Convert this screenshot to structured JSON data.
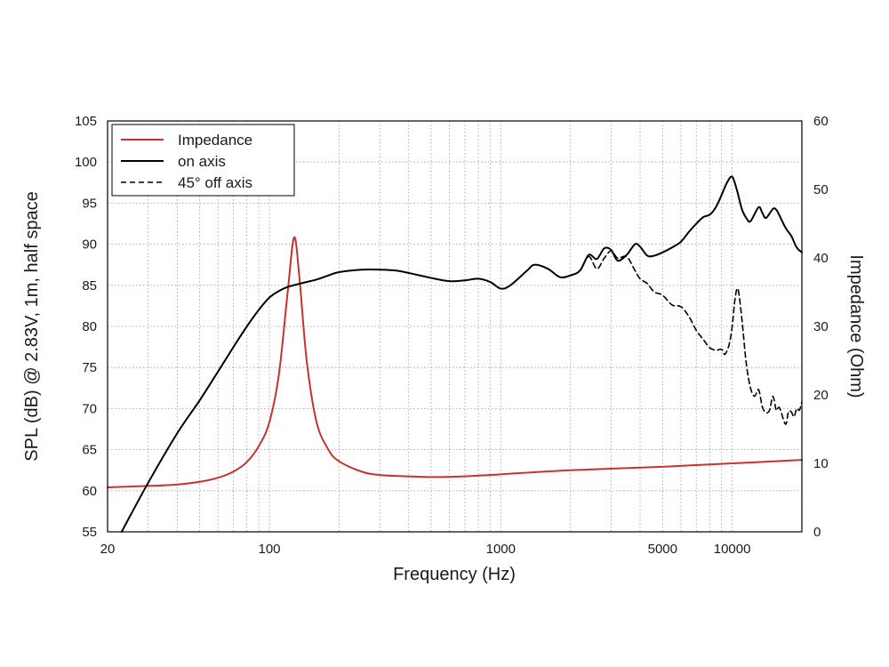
{
  "chart_data": {
    "type": "line",
    "xlabel": "Frequency (Hz)",
    "ylabel_left": "SPL (dB) @ 2.83V, 1m, half space",
    "ylabel_right": "Impedance (Ohm)",
    "x_scale": "log",
    "xlim": [
      20,
      20000
    ],
    "ylim_left": [
      55,
      105
    ],
    "ylim_right": [
      0,
      60
    ],
    "x_ticks": [
      20,
      100,
      1000,
      5000,
      10000
    ],
    "x_tick_labels": [
      "20",
      "100",
      "1000",
      "5000",
      "10000"
    ],
    "y_left_ticks": [
      55,
      60,
      65,
      70,
      75,
      80,
      85,
      90,
      95,
      100,
      105
    ],
    "y_right_ticks": [
      0,
      10,
      20,
      30,
      40,
      50,
      60
    ],
    "grid": true,
    "legend_position": "top-left",
    "colors": {
      "impedance": "#c8322c",
      "spl": "#000000"
    },
    "series": [
      {
        "name": "Impedance",
        "axis": "right",
        "style": "solid",
        "color": "#c8322c",
        "points": [
          [
            20,
            6.5
          ],
          [
            30,
            6.7
          ],
          [
            40,
            6.9
          ],
          [
            50,
            7.3
          ],
          [
            60,
            7.9
          ],
          [
            70,
            8.8
          ],
          [
            80,
            10.2
          ],
          [
            90,
            12.5
          ],
          [
            100,
            16
          ],
          [
            110,
            23
          ],
          [
            120,
            35
          ],
          [
            128,
            43
          ],
          [
            135,
            37
          ],
          [
            145,
            25
          ],
          [
            160,
            16
          ],
          [
            180,
            12
          ],
          [
            200,
            10.3
          ],
          [
            250,
            8.8
          ],
          [
            300,
            8.3
          ],
          [
            400,
            8.1
          ],
          [
            500,
            8.0
          ],
          [
            700,
            8.1
          ],
          [
            1000,
            8.4
          ],
          [
            2000,
            9.0
          ],
          [
            5000,
            9.5
          ],
          [
            10000,
            10.0
          ],
          [
            20000,
            10.5
          ]
        ]
      },
      {
        "name": "on axis",
        "axis": "left",
        "style": "solid",
        "color": "#000000",
        "points": [
          [
            23,
            55
          ],
          [
            30,
            61
          ],
          [
            40,
            67
          ],
          [
            50,
            71
          ],
          [
            60,
            74.5
          ],
          [
            70,
            77.5
          ],
          [
            80,
            80
          ],
          [
            90,
            82
          ],
          [
            100,
            83.5
          ],
          [
            110,
            84.3
          ],
          [
            120,
            84.8
          ],
          [
            140,
            85.3
          ],
          [
            160,
            85.7
          ],
          [
            180,
            86.2
          ],
          [
            200,
            86.6
          ],
          [
            250,
            86.9
          ],
          [
            300,
            86.9
          ],
          [
            350,
            86.8
          ],
          [
            400,
            86.5
          ],
          [
            500,
            85.9
          ],
          [
            600,
            85.5
          ],
          [
            700,
            85.6
          ],
          [
            800,
            85.8
          ],
          [
            900,
            85.4
          ],
          [
            1000,
            84.6
          ],
          [
            1100,
            85
          ],
          [
            1300,
            86.8
          ],
          [
            1400,
            87.5
          ],
          [
            1600,
            87
          ],
          [
            1800,
            86
          ],
          [
            2000,
            86.2
          ],
          [
            2200,
            86.8
          ],
          [
            2400,
            88.7
          ],
          [
            2600,
            88.2
          ],
          [
            2800,
            89.5
          ],
          [
            3000,
            89.3
          ],
          [
            3200,
            88
          ],
          [
            3500,
            88.7
          ],
          [
            3800,
            90
          ],
          [
            4000,
            89.7
          ],
          [
            4300,
            88.6
          ],
          [
            4600,
            88.6
          ],
          [
            5000,
            89
          ],
          [
            5500,
            89.6
          ],
          [
            6000,
            90.3
          ],
          [
            6500,
            91.5
          ],
          [
            7000,
            92.5
          ],
          [
            7500,
            93.3
          ],
          [
            8000,
            93.6
          ],
          [
            8500,
            94.5
          ],
          [
            9000,
            96
          ],
          [
            9500,
            97.5
          ],
          [
            10000,
            98.2
          ],
          [
            10500,
            96.5
          ],
          [
            11000,
            94.3
          ],
          [
            11500,
            93.2
          ],
          [
            12000,
            92.8
          ],
          [
            13000,
            94.5
          ],
          [
            13500,
            93.8
          ],
          [
            14000,
            93.2
          ],
          [
            15000,
            94.3
          ],
          [
            15500,
            94.2
          ],
          [
            16000,
            93.5
          ],
          [
            17000,
            92
          ],
          [
            18000,
            91
          ],
          [
            19000,
            89.6
          ],
          [
            20000,
            89
          ]
        ]
      },
      {
        "name": "45° off axis",
        "axis": "left",
        "style": "dashed",
        "color": "#000000",
        "points": [
          [
            2000,
            86.2
          ],
          [
            2200,
            86.8
          ],
          [
            2400,
            88.5
          ],
          [
            2600,
            87
          ],
          [
            2800,
            88.3
          ],
          [
            3000,
            89.2
          ],
          [
            3200,
            88.3
          ],
          [
            3500,
            88.5
          ],
          [
            3800,
            86.8
          ],
          [
            4000,
            85.8
          ],
          [
            4300,
            85.2
          ],
          [
            4600,
            84.2
          ],
          [
            5000,
            83.8
          ],
          [
            5500,
            82.6
          ],
          [
            6000,
            82.4
          ],
          [
            6500,
            81.2
          ],
          [
            7000,
            79.5
          ],
          [
            7500,
            78.4
          ],
          [
            8000,
            77.4
          ],
          [
            8500,
            77.1
          ],
          [
            9000,
            77.2
          ],
          [
            9300,
            76.6
          ],
          [
            9700,
            77.8
          ],
          [
            10000,
            80
          ],
          [
            10300,
            83.5
          ],
          [
            10600,
            84.5
          ],
          [
            11000,
            81
          ],
          [
            11500,
            75.5
          ],
          [
            12000,
            72.5
          ],
          [
            12500,
            71.5
          ],
          [
            13000,
            72.3
          ],
          [
            13500,
            70.2
          ],
          [
            14000,
            69.5
          ],
          [
            14500,
            69.8
          ],
          [
            15000,
            71.5
          ],
          [
            15500,
            69.8
          ],
          [
            16000,
            70.1
          ],
          [
            17000,
            68.1
          ],
          [
            17500,
            69.6
          ],
          [
            18000,
            69.6
          ],
          [
            18500,
            69
          ],
          [
            19000,
            70
          ],
          [
            19500,
            69.8
          ],
          [
            20000,
            70.8
          ]
        ]
      }
    ]
  }
}
